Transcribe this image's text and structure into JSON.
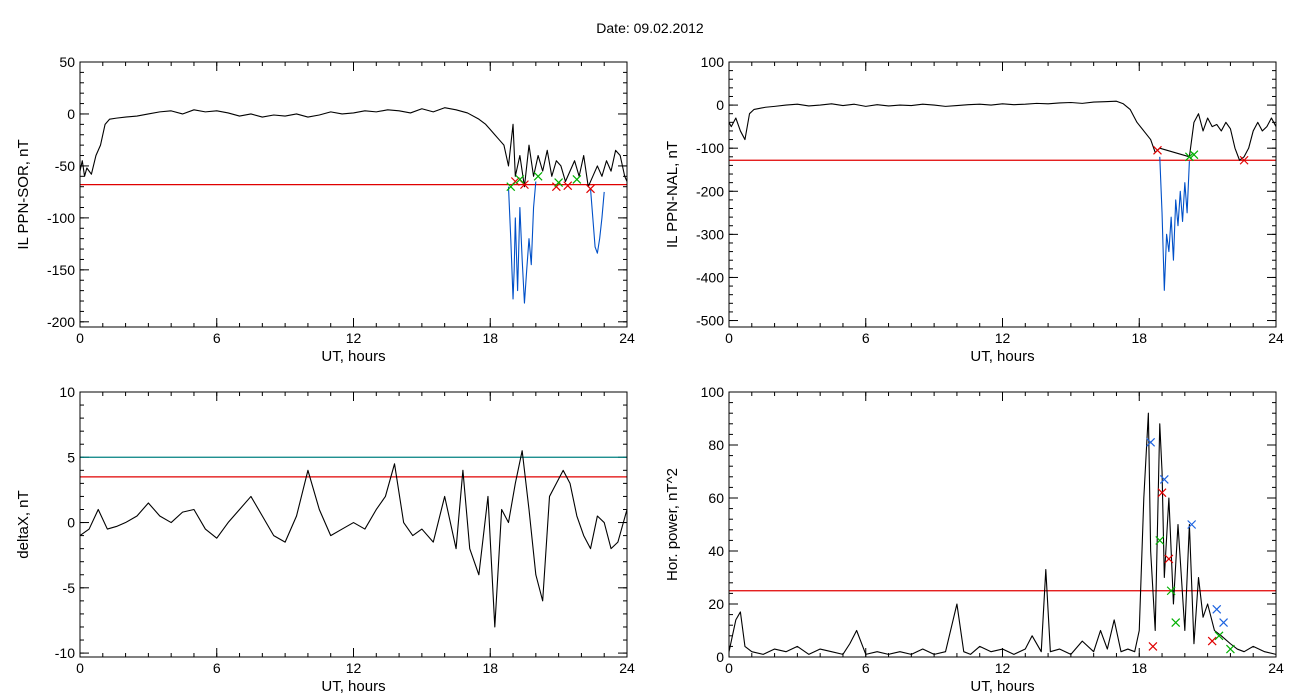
{
  "figure": {
    "title": "Date:  09.02.2012"
  },
  "chart_data": [
    {
      "type": "line",
      "ylabel": "IL PPN-SOR, nT",
      "xlabel": "UT, hours",
      "xlim": [
        0,
        24
      ],
      "ylim": [
        -205,
        50
      ],
      "xticks": [
        0,
        6,
        12,
        18,
        24
      ],
      "yticks": [
        50,
        0,
        -50,
        -100,
        -150,
        -200
      ],
      "threshold_lines": [
        {
          "y": -68,
          "color": "#e00000"
        }
      ],
      "series": [
        {
          "color": "#000000",
          "x": [
            0,
            0.1,
            0.2,
            0.3,
            0.5,
            0.7,
            0.9,
            1.1,
            1.3,
            1.6,
            2,
            2.5,
            3,
            3.5,
            4,
            4.5,
            5,
            5.5,
            6,
            6.5,
            7,
            7.5,
            8,
            8.5,
            9,
            9.5,
            10,
            10.5,
            11,
            11.5,
            12,
            12.5,
            13,
            13.5,
            14,
            14.5,
            15,
            15.5,
            16,
            16.5,
            17,
            17.5,
            17.8,
            18,
            18.2,
            18.4,
            18.6,
            18.8,
            19,
            19.1,
            19.3,
            19.5,
            19.7,
            19.9,
            20.1,
            20.3,
            20.5,
            20.7,
            20.9,
            21.1,
            21.3,
            21.5,
            21.7,
            21.9,
            22.1,
            22.3,
            22.5,
            22.7,
            22.9,
            23.1,
            23.3,
            23.5,
            23.7,
            23.9,
            24
          ],
          "y": [
            -55,
            -45,
            -60,
            -52,
            -58,
            -40,
            -30,
            -10,
            -5,
            -4,
            -3,
            -2,
            0,
            2,
            3,
            0,
            4,
            2,
            3,
            1,
            -2,
            0,
            -3,
            -1,
            -2,
            0,
            -3,
            -1,
            2,
            0,
            1,
            3,
            2,
            4,
            3,
            1,
            5,
            2,
            6,
            4,
            1,
            -5,
            -10,
            -15,
            -20,
            -25,
            -30,
            -50,
            -10,
            -60,
            -40,
            -70,
            -30,
            -60,
            -40,
            -55,
            -35,
            -60,
            -45,
            -50,
            -65,
            -55,
            -45,
            -60,
            -40,
            -70,
            -60,
            -50,
            -60,
            -45,
            -55,
            -35,
            -40,
            -60,
            -65
          ]
        },
        {
          "color": "#0050c8",
          "x": [
            18.8,
            18.9,
            19,
            19.05,
            19.1,
            19.2,
            19.3,
            19.4,
            19.5,
            19.6,
            19.7,
            19.8,
            19.9,
            20
          ],
          "y": [
            -70,
            -120,
            -178,
            -150,
            -100,
            -170,
            -90,
            -140,
            -182,
            -150,
            -120,
            -145,
            -90,
            -65
          ]
        },
        {
          "color": "#0050c8",
          "x": [
            22.4,
            22.5,
            22.6,
            22.7,
            22.8,
            22.9,
            23
          ],
          "y": [
            -72,
            -100,
            -128,
            -134,
            -120,
            -100,
            -75
          ]
        }
      ],
      "markers": [
        {
          "color": "#e00000",
          "x": [
            19.1,
            19.5,
            20.9,
            21.4,
            22.4
          ],
          "y": [
            -65,
            -68,
            -70,
            -69,
            -72
          ]
        },
        {
          "color": "#00b000",
          "x": [
            18.9,
            19.3,
            20.1,
            21.0,
            21.8
          ],
          "y": [
            -70,
            -63,
            -60,
            -66,
            -63
          ]
        }
      ]
    },
    {
      "type": "line",
      "ylabel": "IL PPN-NAL, nT",
      "xlabel": "UT, hours",
      "xlim": [
        0,
        24
      ],
      "ylim": [
        -515,
        100
      ],
      "xticks": [
        0,
        6,
        12,
        18,
        24
      ],
      "yticks": [
        100,
        0,
        -100,
        -200,
        -300,
        -400,
        -500
      ],
      "threshold_lines": [
        {
          "y": -128,
          "color": "#e00000"
        }
      ],
      "series": [
        {
          "color": "#000000",
          "x": [
            0,
            0.1,
            0.3,
            0.5,
            0.7,
            0.9,
            1.1,
            1.3,
            1.6,
            2,
            2.5,
            3,
            3.5,
            4,
            4.5,
            5,
            5.5,
            6,
            6.5,
            7,
            7.5,
            8,
            8.5,
            9,
            9.5,
            10,
            10.5,
            11,
            11.5,
            12,
            12.5,
            13,
            13.5,
            14,
            14.5,
            15,
            15.5,
            16,
            16.5,
            17,
            17.3,
            17.6,
            17.9,
            18.2,
            18.5,
            18.7,
            18.9,
            20.2,
            20.4,
            20.6,
            20.8,
            21,
            21.2,
            21.4,
            21.6,
            21.8,
            22,
            22.2,
            22.4,
            22.6,
            22.8,
            23,
            23.2,
            23.4,
            23.6,
            23.8,
            24
          ],
          "y": [
            -40,
            -50,
            -30,
            -60,
            -80,
            -20,
            -10,
            -8,
            -5,
            -3,
            0,
            2,
            -2,
            0,
            3,
            -1,
            2,
            -3,
            1,
            -2,
            0,
            -1,
            2,
            0,
            -3,
            -1,
            1,
            2,
            0,
            3,
            1,
            2,
            4,
            3,
            5,
            6,
            4,
            7,
            8,
            9,
            3,
            -10,
            -40,
            -60,
            -80,
            -110,
            -100,
            -120,
            -40,
            -20,
            -60,
            -30,
            -50,
            -45,
            -60,
            -40,
            -55,
            -100,
            -128,
            -120,
            -100,
            -60,
            -40,
            -60,
            -50,
            -30,
            -50
          ]
        },
        {
          "color": "#0050c8",
          "x": [
            18.9,
            19,
            19.1,
            19.2,
            19.3,
            19.4,
            19.5,
            19.6,
            19.7,
            19.8,
            19.9,
            20,
            20.1,
            20.2
          ],
          "y": [
            -120,
            -250,
            -430,
            -300,
            -340,
            -260,
            -360,
            -220,
            -280,
            -200,
            -270,
            -180,
            -250,
            -130
          ]
        }
      ],
      "markers": [
        {
          "color": "#e00000",
          "x": [
            18.8,
            22.6
          ],
          "y": [
            -105,
            -128
          ]
        },
        {
          "color": "#00b000",
          "x": [
            20.2,
            20.4
          ],
          "y": [
            -120,
            -115
          ]
        }
      ]
    },
    {
      "type": "line",
      "ylabel": "deltaX, nT",
      "xlabel": "UT, hours",
      "xlim": [
        0,
        24
      ],
      "ylim": [
        -10.3,
        10
      ],
      "xticks": [
        0,
        6,
        12,
        18,
        24
      ],
      "yticks": [
        10,
        5,
        0,
        -5,
        -10
      ],
      "threshold_lines": [
        {
          "y": 5,
          "color": "#008080"
        },
        {
          "y": 3.5,
          "color": "#e00000"
        }
      ],
      "series": [
        {
          "color": "#000000",
          "x": [
            0,
            0.4,
            0.8,
            1.2,
            1.6,
            2,
            2.5,
            3,
            3.5,
            4,
            4.5,
            5,
            5.5,
            6,
            6.5,
            7,
            7.5,
            8,
            8.5,
            9,
            9.5,
            10,
            10.5,
            11,
            11.5,
            12,
            12.5,
            13,
            13.4,
            13.8,
            14.2,
            14.6,
            15,
            15.5,
            16,
            16.5,
            16.8,
            17.1,
            17.5,
            17.9,
            18.2,
            18.5,
            18.8,
            19.1,
            19.4,
            19.7,
            20,
            20.3,
            20.6,
            20.9,
            21.2,
            21.5,
            21.8,
            22.1,
            22.4,
            22.7,
            23,
            23.3,
            23.6,
            24
          ],
          "y": [
            -1,
            -0.5,
            1,
            -0.5,
            -0.3,
            0,
            0.5,
            1.5,
            0.5,
            0,
            0.8,
            1,
            -0.5,
            -1.2,
            0,
            1,
            2,
            0.5,
            -1,
            -1.5,
            0.5,
            4,
            1,
            -1,
            -0.5,
            0,
            -0.5,
            1,
            2,
            4.5,
            0,
            -1,
            -0.5,
            -1.5,
            2,
            -2,
            4,
            -2,
            -4,
            2,
            -8,
            1,
            0,
            3,
            5.5,
            1,
            -4,
            -6,
            2,
            3,
            4,
            3,
            0.5,
            -1,
            -2,
            0.5,
            0,
            -2,
            -1.5,
            1
          ]
        }
      ],
      "markers": []
    },
    {
      "type": "line",
      "ylabel": "Hor. power, nT^2",
      "xlabel": "UT, hours",
      "xlim": [
        0,
        24
      ],
      "ylim": [
        0,
        100
      ],
      "xticks": [
        0,
        6,
        12,
        18,
        24
      ],
      "yticks": [
        100,
        80,
        60,
        40,
        20,
        0
      ],
      "threshold_lines": [
        {
          "y": 25,
          "color": "#e00000"
        }
      ],
      "series": [
        {
          "color": "#000000",
          "x": [
            0,
            0.3,
            0.5,
            0.7,
            1,
            1.5,
            2,
            2.5,
            3,
            3.5,
            4,
            4.5,
            5,
            5.3,
            5.6,
            6,
            6.5,
            7,
            7.5,
            8,
            8.5,
            9,
            9.5,
            10,
            10.3,
            10.6,
            11,
            11.5,
            12,
            12.5,
            13,
            13.3,
            13.7,
            13.9,
            14.1,
            14.5,
            15,
            15.5,
            16,
            16.3,
            16.6,
            16.9,
            17.2,
            17.5,
            17.8,
            18,
            18.2,
            18.4,
            18.5,
            18.7,
            18.9,
            19,
            19.1,
            19.3,
            19.5,
            19.7,
            20,
            20.2,
            20.4,
            20.6,
            20.8,
            21,
            21.3,
            21.6,
            22,
            22.3,
            22.6,
            23,
            23.5,
            24
          ],
          "y": [
            2,
            14,
            17,
            4,
            2,
            1,
            3,
            2,
            4,
            1,
            3,
            2,
            1,
            5,
            10,
            1,
            2,
            1,
            2,
            1,
            3,
            1,
            2,
            20,
            2,
            1,
            4,
            2,
            3,
            1,
            3,
            8,
            2,
            33,
            2,
            3,
            1,
            6,
            2,
            10,
            3,
            14,
            2,
            3,
            2,
            10,
            60,
            92,
            40,
            10,
            88,
            70,
            30,
            60,
            20,
            50,
            10,
            50,
            5,
            30,
            15,
            20,
            10,
            8,
            5,
            3,
            2,
            4,
            2,
            1
          ]
        }
      ],
      "markers": [
        {
          "color": "#1e64e0",
          "x": [
            18.5,
            19.1,
            20.3,
            21.4,
            21.7
          ],
          "y": [
            81,
            67,
            50,
            18,
            13
          ]
        },
        {
          "color": "#e00000",
          "x": [
            18.6,
            19.0,
            19.3,
            21.2
          ],
          "y": [
            4,
            62,
            37,
            6
          ]
        },
        {
          "color": "#00b000",
          "x": [
            18.9,
            19.4,
            19.6,
            21.5,
            22.0
          ],
          "y": [
            44,
            25,
            13,
            8,
            3
          ]
        }
      ]
    }
  ]
}
